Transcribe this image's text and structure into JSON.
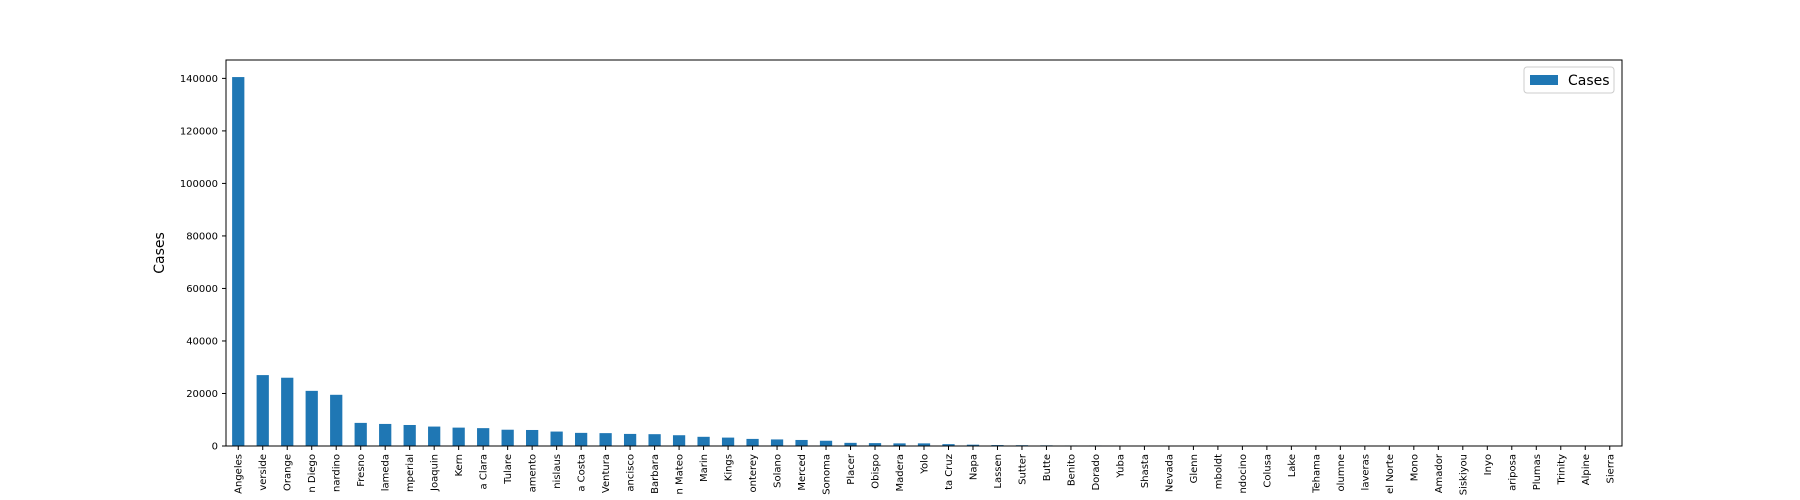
{
  "chart_data": {
    "type": "bar",
    "ylabel": "Cases",
    "xlabel": "",
    "ylim": [
      0,
      147000
    ],
    "yticks": [
      0,
      20000,
      40000,
      60000,
      80000,
      100000,
      120000,
      140000
    ],
    "grid": false,
    "legend_position": "top-right",
    "bar_color": "#1f77b4",
    "series": [
      {
        "name": "Cases"
      }
    ],
    "categories": [
      "Angeles",
      "verside",
      "Orange",
      "n Diego",
      "nardino",
      "Fresno",
      "lameda",
      "mperial",
      "Joaquin",
      "Kern",
      "a Clara",
      "Tulare",
      "amento",
      "nislaus",
      "a Costa",
      "Ventura",
      "ancisco",
      "Barbara",
      "n Mateo",
      "Marin",
      "Kings",
      "onterey",
      "Solano",
      "Merced",
      "Sonoma",
      "Placer",
      "Obispo",
      "Madera",
      "Yolo",
      "ta Cruz",
      "Napa",
      "Lassen",
      "Sutter",
      "Butte",
      "Benito",
      "Dorado",
      "Yuba",
      "Shasta",
      "Nevada",
      "Glenn",
      "mboldt",
      "ndocino",
      "Colusa",
      "Lake",
      "Tehama",
      "olumne",
      "laveras",
      "el Norte",
      "Mono",
      "Amador",
      "Siskiyou",
      "Inyo",
      "ariposa",
      "Plumas",
      "Trinity",
      "Alpine",
      "Sierra"
    ],
    "values": [
      140500,
      27000,
      26000,
      21000,
      19500,
      8800,
      8400,
      8000,
      7400,
      7000,
      6800,
      6200,
      6100,
      5500,
      5000,
      4900,
      4600,
      4500,
      4100,
      3500,
      3200,
      2700,
      2500,
      2300,
      2000,
      1200,
      1100,
      1000,
      1000,
      700,
      500,
      350,
      300,
      250,
      200,
      200,
      150,
      120,
      100,
      80,
      70,
      60,
      50,
      40,
      30,
      30,
      25,
      20,
      20,
      15,
      15,
      10,
      10,
      10,
      5,
      3,
      3
    ]
  }
}
